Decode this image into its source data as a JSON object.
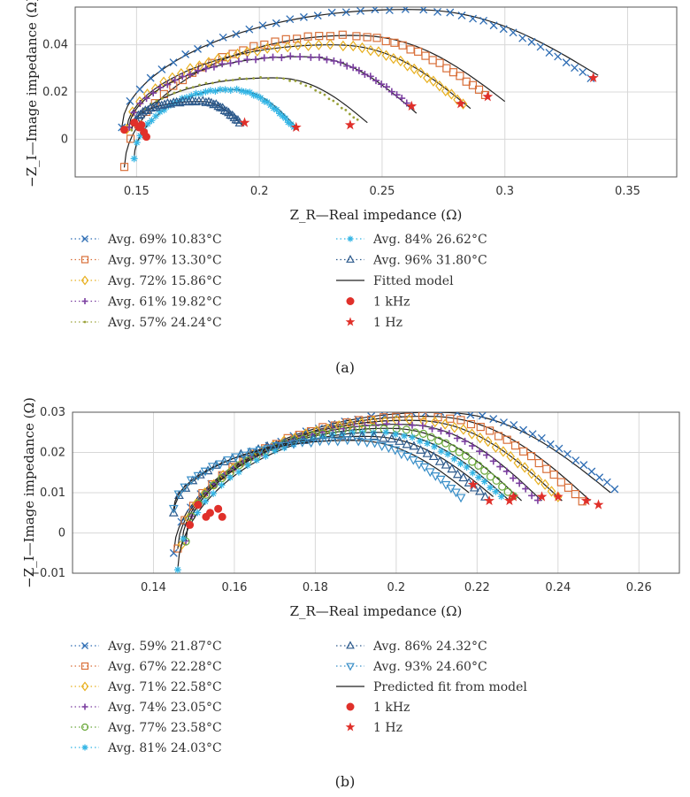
{
  "chart_data": [
    {
      "type": "scatter",
      "panel": "(a)",
      "xlabel": "Z_R—Real impedance (Ω)",
      "ylabel": "−Z_I—Image impedance (Ω)",
      "xlim": [
        0.125,
        0.37
      ],
      "ylim": [
        -0.016,
        0.056
      ],
      "xticks": [
        "0.15",
        "0.2",
        "0.25",
        "0.3",
        "0.35"
      ],
      "xtick_values": [
        0.15,
        0.2,
        0.25,
        0.3,
        0.35
      ],
      "yticks": [
        "0",
        "0.02",
        "0.04"
      ],
      "ytick_values": [
        0,
        0.02,
        0.04
      ],
      "grid": true,
      "legend_position": "bottom",
      "series": [
        {
          "name": "Avg. 69% 10.83°C",
          "marker": "x",
          "color": "#2e6db4",
          "start": [
            0.144,
            0.005
          ],
          "end": [
            0.335,
            0.026
          ],
          "peak": 0.055,
          "fit_end": [
            0.338,
            0.027
          ]
        },
        {
          "name": "Avg. 97% 13.30°C",
          "marker": "square",
          "color": "#d9703a",
          "start": [
            0.145,
            -0.012
          ],
          "end": [
            0.292,
            0.019
          ],
          "peak": 0.044,
          "fit_end": [
            0.3,
            0.016
          ]
        },
        {
          "name": "Avg. 72% 15.86°C",
          "marker": "diamond",
          "color": "#e8b020",
          "start": [
            0.146,
            0.004
          ],
          "end": [
            0.283,
            0.015
          ],
          "peak": 0.04,
          "fit_end": [
            0.286,
            0.013
          ]
        },
        {
          "name": "Avg. 61% 19.82°C",
          "marker": "plus",
          "color": "#7b3fa0",
          "start": [
            0.147,
            0.005
          ],
          "end": [
            0.262,
            0.014
          ],
          "peak": 0.035,
          "fit_end": [
            0.264,
            0.011
          ]
        },
        {
          "name": "Avg. 57% 24.24°C",
          "marker": "dot",
          "color": "#9aa23a",
          "start": [
            0.148,
            0.004
          ],
          "end": [
            0.24,
            0.008
          ],
          "peak": 0.026,
          "fit_end": [
            0.244,
            0.007
          ]
        },
        {
          "name": "Avg. 84% 26.62°C",
          "marker": "asterisk",
          "color": "#33b5e5",
          "start": [
            0.149,
            -0.008
          ],
          "end": [
            0.214,
            0.005
          ],
          "peak": 0.021,
          "fit_end": [
            0.216,
            0.004
          ]
        },
        {
          "name": "Avg. 96% 31.80°C",
          "marker": "triangle-up",
          "color": "#2d5a8c",
          "start": [
            0.15,
            0.008
          ],
          "end": [
            0.192,
            0.007
          ],
          "peak": 0.016,
          "fit_end": [
            0.193,
            0.006
          ]
        }
      ],
      "fitted_label": "Fitted model",
      "khz_label": "1 kHz",
      "hz_label": "1 Hz",
      "khz_points": [
        [
          0.145,
          0.004
        ],
        [
          0.149,
          0.007
        ],
        [
          0.151,
          0.005
        ],
        [
          0.153,
          0.003
        ],
        [
          0.154,
          0.001
        ],
        [
          0.152,
          0.006
        ]
      ],
      "hz_points": [
        [
          0.336,
          0.026
        ],
        [
          0.293,
          0.018
        ],
        [
          0.282,
          0.015
        ],
        [
          0.262,
          0.014
        ],
        [
          0.237,
          0.006
        ],
        [
          0.215,
          0.005
        ],
        [
          0.194,
          0.007
        ]
      ]
    },
    {
      "type": "scatter",
      "panel": "(b)",
      "xlabel": "Z_R—Real impedance (Ω)",
      "ylabel": "−Z_I—Image impedance (Ω)",
      "xlim": [
        0.12,
        0.27
      ],
      "ylim": [
        -0.01,
        0.03
      ],
      "xticks": [
        "0.14",
        "0.16",
        "0.18",
        "0.2",
        "0.22",
        "0.24",
        "0.26"
      ],
      "xtick_values": [
        0.14,
        0.16,
        0.18,
        0.2,
        0.22,
        0.24,
        0.26
      ],
      "yticks": [
        "−0.01",
        "0",
        "0.01",
        "0.02",
        "0.03"
      ],
      "ytick_values": [
        -0.01,
        0,
        0.01,
        0.02,
        0.03
      ],
      "grid": true,
      "legend_position": "bottom",
      "series": [
        {
          "name": "Avg. 59% 21.87°C",
          "marker": "x",
          "color": "#2e6db4",
          "start": [
            0.145,
            -0.005
          ],
          "end": [
            0.254,
            0.011
          ],
          "peak": 0.03,
          "fit_end": [
            0.253,
            0.01
          ]
        },
        {
          "name": "Avg. 67% 22.28°C",
          "marker": "square",
          "color": "#d9703a",
          "start": [
            0.146,
            -0.004
          ],
          "end": [
            0.246,
            0.008
          ],
          "peak": 0.029,
          "fit_end": [
            0.248,
            0.008
          ]
        },
        {
          "name": "Avg. 71% 22.58°C",
          "marker": "diamond",
          "color": "#e8b020",
          "start": [
            0.147,
            -0.003
          ],
          "end": [
            0.24,
            0.009
          ],
          "peak": 0.028,
          "fit_end": [
            0.241,
            0.008
          ]
        },
        {
          "name": "Avg. 74% 23.05°C",
          "marker": "plus",
          "color": "#7b3fa0",
          "start": [
            0.148,
            -0.002
          ],
          "end": [
            0.235,
            0.008
          ],
          "peak": 0.027,
          "fit_end": [
            0.236,
            0.008
          ]
        },
        {
          "name": "Avg. 77% 23.58°C",
          "marker": "circle",
          "color": "#6aa83a",
          "start": [
            0.148,
            -0.002
          ],
          "end": [
            0.229,
            0.009
          ],
          "peak": 0.026,
          "fit_end": [
            0.231,
            0.008
          ]
        },
        {
          "name": "Avg. 81% 24.03°C",
          "marker": "asterisk",
          "color": "#33b5e5",
          "start": [
            0.146,
            -0.009
          ],
          "end": [
            0.226,
            0.009
          ],
          "peak": 0.025,
          "fit_end": [
            0.228,
            0.008
          ]
        },
        {
          "name": "Avg. 86% 24.32°C",
          "marker": "triangle-up",
          "color": "#2d5a8c",
          "start": [
            0.145,
            0.005
          ],
          "end": [
            0.222,
            0.009
          ],
          "peak": 0.024,
          "fit_end": [
            0.224,
            0.009
          ]
        },
        {
          "name": "Avg. 93% 24.60°C",
          "marker": "triangle-down",
          "color": "#3a8fc8",
          "start": [
            0.145,
            0.006
          ],
          "end": [
            0.216,
            0.009
          ],
          "peak": 0.023,
          "fit_end": [
            0.218,
            0.01
          ]
        }
      ],
      "fitted_label": "Predicted fit from model",
      "khz_label": "1 kHz",
      "hz_label": "1 Hz",
      "khz_points": [
        [
          0.149,
          0.002
        ],
        [
          0.151,
          0.007
        ],
        [
          0.153,
          0.004
        ],
        [
          0.154,
          0.005
        ],
        [
          0.156,
          0.006
        ],
        [
          0.157,
          0.004
        ]
      ],
      "hz_points": [
        [
          0.25,
          0.007
        ],
        [
          0.247,
          0.008
        ],
        [
          0.24,
          0.009
        ],
        [
          0.236,
          0.009
        ],
        [
          0.229,
          0.009
        ],
        [
          0.228,
          0.008
        ],
        [
          0.223,
          0.008
        ],
        [
          0.219,
          0.012
        ]
      ]
    }
  ]
}
